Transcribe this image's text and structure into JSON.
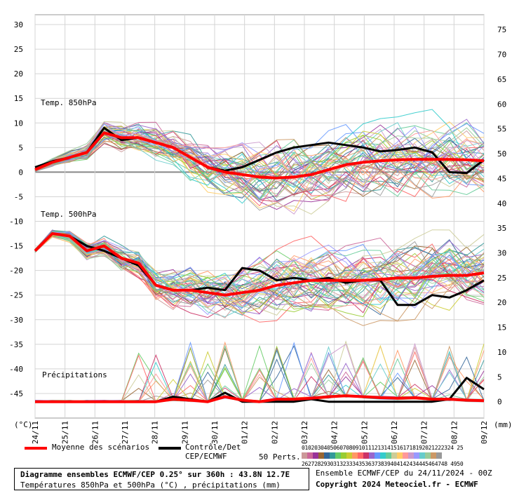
{
  "chart_data": {
    "type": "line",
    "left_axis": {
      "unit": "(°C)",
      "ticks": [
        30,
        25,
        20,
        15,
        10,
        5,
        0,
        -5,
        -10,
        -15,
        -20,
        -25,
        -30,
        -35,
        -40,
        -45
      ],
      "ylim": [
        -50,
        32
      ]
    },
    "right_axis": {
      "unit": "(mm)",
      "ticks": [
        75,
        70,
        65,
        60,
        55,
        50,
        45,
        40,
        35,
        30,
        25,
        20,
        15,
        10,
        5,
        0
      ],
      "ylim": [
        -3.3,
        78
      ]
    },
    "x_ticks": [
      "24/11",
      "25/11",
      "26/11",
      "27/11",
      "28/11",
      "29/11",
      "30/11",
      "01/12",
      "02/12",
      "03/12",
      "04/12",
      "05/12",
      "06/12",
      "07/12",
      "08/12",
      "09/12"
    ],
    "grid": true,
    "panel_labels": {
      "t850": "Temp. 850hPa",
      "t500": "Temp. 500hPa",
      "precip": "Précipitations"
    },
    "t850": {
      "mean": [
        0.5,
        2,
        3,
        4,
        8,
        7,
        7,
        6,
        5,
        3,
        1,
        0,
        -0.5,
        -1,
        -1.2,
        -1,
        -0.5,
        0.5,
        1.5,
        2,
        2.3,
        2.5,
        2.6,
        2.6,
        2.6,
        2.5,
        2.3
      ],
      "control": [
        1,
        2.2,
        3,
        4,
        9,
        6.5,
        7,
        6,
        5,
        3,
        1,
        0.3,
        1,
        2.5,
        4,
        5,
        5.5,
        6,
        5.5,
        5,
        4.2,
        4.5,
        5,
        4,
        0,
        -0.2,
        2.5
      ]
    },
    "t500": {
      "mean": [
        -16,
        -12.5,
        -13,
        -16,
        -15,
        -17.5,
        -18.5,
        -23,
        -24,
        -24,
        -24.5,
        -25,
        -24.5,
        -24,
        -23,
        -22.5,
        -22,
        -22,
        -22,
        -22,
        -21.8,
        -21.5,
        -21.5,
        -21.2,
        -21,
        -21,
        -20.5
      ],
      "control": [
        -16,
        -12.5,
        -13,
        -15,
        -16,
        -17.5,
        -19,
        -23,
        -24,
        -24,
        -23.5,
        -24,
        -19.5,
        -20,
        -22,
        -21.5,
        -22,
        -21.5,
        -22.5,
        -22,
        -22,
        -27,
        -27,
        -25,
        -25.5,
        -24,
        -22
      ]
    },
    "precip": {
      "mean": [
        0,
        0,
        0,
        0,
        0,
        0,
        0,
        0,
        0.5,
        0.3,
        0,
        1,
        0.3,
        0,
        0.5,
        0.5,
        0.7,
        1,
        1.2,
        1,
        0.8,
        0.7,
        0.8,
        0.5,
        0.5,
        0.3,
        0.2
      ],
      "control": [
        0,
        0,
        0,
        0,
        0,
        0,
        0,
        0,
        1,
        0.5,
        0,
        1.8,
        0,
        0,
        0,
        0,
        0.5,
        0,
        0,
        0,
        0,
        0,
        0,
        0,
        0.5,
        4.8,
        2.5
      ]
    },
    "members": 50
  },
  "legend": {
    "mean_label": "Moyenne des scénarios",
    "mean_color": "#ff0000",
    "control_label": "Contrôle/Det",
    "control_label2": "CEP/ECMWF",
    "control_color": "#000000",
    "perts_label": "50 Perts."
  },
  "palette": {
    "row1": "010203040506070809101112131415161718192021222324 25",
    "row2": "2627282930313233343536373839404142434445464748 4950",
    "colors": [
      "#cc9999",
      "#cc6699",
      "#993399",
      "#996633",
      "#336699",
      "#339999",
      "#66cc66",
      "#99cc33",
      "#cccc33",
      "#ff9966",
      "#ff6666",
      "#cc3366",
      "#9966cc",
      "#6699ff",
      "#33cccc",
      "#66cc99",
      "#cccc99",
      "#ffcc66",
      "#ff9999",
      "#cc99cc",
      "#9999ff",
      "#66cccc",
      "#99cc99",
      "#cc9966",
      "#999999"
    ]
  },
  "title": {
    "main": "Diagramme ensembles ECMWF/CEP 0.25° sur 360h : 43.8N 12.7E",
    "sub": "Températures 850hPa et 500hPa (°C) , précipitations (mm)"
  },
  "info": {
    "run": "Ensemble ECMWF/CEP du 24/11/2024 - 00Z",
    "copyright": "Copyright 2024 Meteociel.fr - ECMWF"
  }
}
